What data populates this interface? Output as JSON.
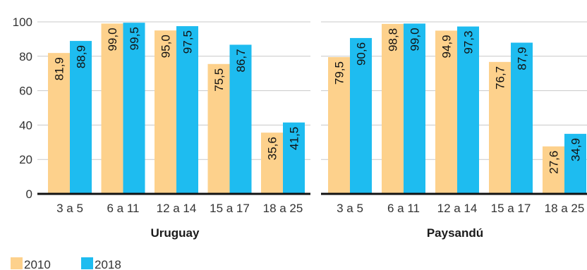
{
  "chart_data": [
    {
      "type": "bar",
      "title": "Uruguay",
      "categories": [
        "3 a 5",
        "6 a 11",
        "12 a 14",
        "15 a 17",
        "18 a 25"
      ],
      "series": [
        {
          "name": "2010",
          "values": [
            81.9,
            99.0,
            95.0,
            75.5,
            35.6
          ],
          "labels": [
            "81,9",
            "99,0",
            "95,0",
            "75,5",
            "35,6"
          ]
        },
        {
          "name": "2018",
          "values": [
            88.9,
            99.5,
            97.5,
            86.7,
            41.5
          ],
          "labels": [
            "88,9",
            "99,5",
            "97,5",
            "86,7",
            "41,5"
          ]
        }
      ],
      "yticks": [
        0,
        20,
        40,
        60,
        80,
        100
      ],
      "ylim": [
        0,
        100
      ],
      "grid": true
    },
    {
      "type": "bar",
      "title": "Paysandú",
      "categories": [
        "3 a 5",
        "6 a 11",
        "12 a 14",
        "15 a 17",
        "18 a 25"
      ],
      "series": [
        {
          "name": "2010",
          "values": [
            79.5,
            98.8,
            94.9,
            76.7,
            27.6
          ],
          "labels": [
            "79,5",
            "98,8",
            "94,9",
            "76,7",
            "27,6"
          ]
        },
        {
          "name": "2018",
          "values": [
            90.6,
            99.0,
            97.3,
            87.9,
            34.9
          ],
          "labels": [
            "90,6",
            "99,0",
            "97,3",
            "87,9",
            "34,9"
          ]
        }
      ],
      "ylim": [
        0,
        100
      ],
      "grid": true
    }
  ],
  "legend": {
    "placement": "bottom-left",
    "items": [
      {
        "label": "2010",
        "color": "#fdd18c"
      },
      {
        "label": "2018",
        "color": "#1ebcf0"
      }
    ]
  },
  "colors": {
    "2010": "#fdd18c",
    "2018": "#1ebcf0",
    "axis": "#111111",
    "grid": "#c8c8c8"
  }
}
